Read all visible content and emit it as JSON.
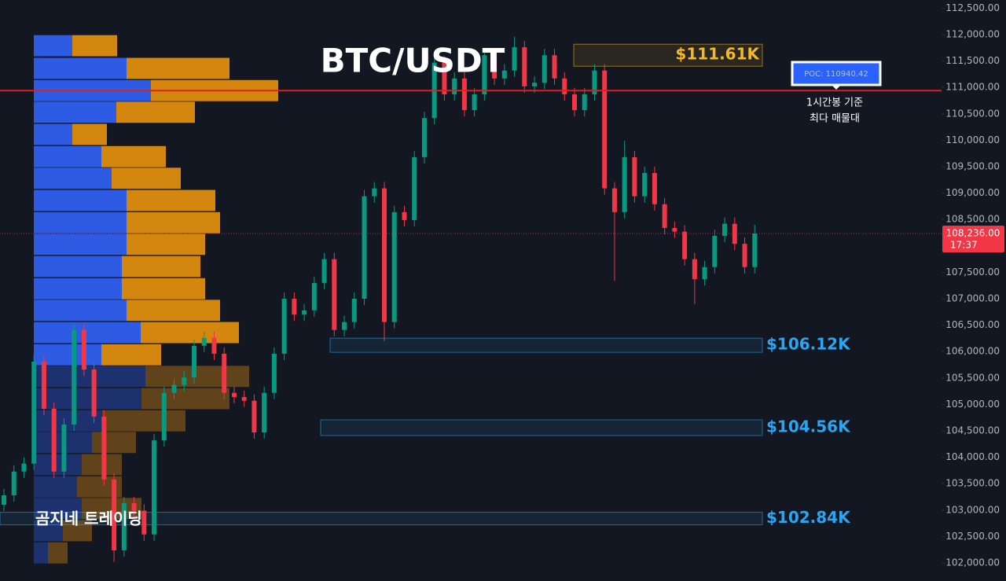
{
  "chart_data": {
    "type": "candlestick",
    "title": "BTC/USDT",
    "watermark": "곰지네 트레이딩",
    "up_color": "#089981",
    "down_color": "#f23645",
    "open": [
      103100,
      103280,
      103730,
      103880,
      105810,
      104920,
      103730,
      104620,
      106410,
      105660,
      104770,
      103580,
      102240,
      103130,
      102990,
      102540,
      104320,
      105220,
      105370,
      105510,
      106110,
      106260,
      105960,
      105220,
      105140,
      105070,
      104470,
      105220,
      105960,
      107000,
      106700,
      106780,
      107300,
      107750,
      106410,
      106560,
      107000,
      108940,
      109090,
      106560,
      108640,
      108490,
      109680,
      110420,
      111470,
      110870,
      111170,
      110570,
      110870,
      111610,
      111170,
      111320,
      111760,
      111020,
      111090,
      111610,
      111170,
      110870,
      110570,
      110870,
      111320,
      109090,
      108640,
      109680,
      108940,
      109380,
      108790,
      108340,
      108270,
      107750,
      107370,
      107600,
      108190,
      108420,
      108040,
      107600
    ],
    "high": [
      103400,
      103850,
      104000,
      105950,
      105930,
      105040,
      104740,
      106530,
      106530,
      105780,
      104890,
      103700,
      103250,
      103250,
      103110,
      104440,
      105340,
      105490,
      105630,
      106230,
      106380,
      106380,
      106080,
      105340,
      105260,
      105190,
      105340,
      106080,
      107120,
      107120,
      106900,
      107420,
      107870,
      107870,
      106680,
      107120,
      109060,
      109210,
      109210,
      108760,
      108760,
      109800,
      110540,
      111590,
      111590,
      111290,
      111290,
      110990,
      111730,
      111730,
      111440,
      111960,
      111880,
      111210,
      111730,
      111730,
      111290,
      110990,
      110990,
      111440,
      111440,
      109210,
      109990,
      109800,
      109500,
      109500,
      108910,
      108460,
      108390,
      107870,
      107720,
      108310,
      108540,
      108540,
      108160,
      108400
    ],
    "low": [
      102980,
      103160,
      103610,
      103760,
      104800,
      103610,
      103610,
      104500,
      105540,
      104650,
      103460,
      102020,
      102120,
      102870,
      102420,
      102420,
      104200,
      105100,
      105250,
      105390,
      105990,
      105840,
      105100,
      105020,
      104950,
      104350,
      104350,
      105100,
      105840,
      106580,
      106580,
      106660,
      107180,
      106290,
      106290,
      106440,
      106880,
      108820,
      106200,
      106440,
      108370,
      108370,
      109560,
      110300,
      110750,
      110750,
      110450,
      110450,
      110750,
      111050,
      111050,
      111200,
      110900,
      110900,
      110970,
      111050,
      110750,
      110450,
      110450,
      110750,
      108970,
      107340,
      108520,
      108820,
      108820,
      108670,
      108220,
      108150,
      107630,
      106900,
      107250,
      107480,
      108070,
      107920,
      107480,
      107480
    ],
    "close": [
      103280,
      103730,
      103880,
      105810,
      104920,
      103730,
      104620,
      106410,
      105660,
      104770,
      103580,
      102240,
      103130,
      102990,
      102540,
      104320,
      105220,
      105370,
      105510,
      106110,
      106260,
      105960,
      105220,
      105140,
      105070,
      104470,
      105220,
      105960,
      107000,
      106700,
      106780,
      107300,
      107750,
      106410,
      106560,
      107000,
      108940,
      109090,
      106560,
      108640,
      108490,
      109680,
      110420,
      111470,
      110870,
      111170,
      110570,
      110870,
      111610,
      111170,
      111320,
      111760,
      111020,
      111090,
      111610,
      111170,
      110870,
      110570,
      110870,
      111320,
      109090,
      108640,
      109680,
      108940,
      109380,
      108790,
      108340,
      108270,
      107750,
      107370,
      107600,
      108190,
      108420,
      108040,
      107600,
      108236
    ],
    "ylim": [
      101658,
      112655
    ],
    "yticks": [
      {
        "value": 102000,
        "label": "102,000.00"
      },
      {
        "value": 102500,
        "label": "102,500.00"
      },
      {
        "value": 103000,
        "label": "103,000.00"
      },
      {
        "value": 103500,
        "label": "103,500.00"
      },
      {
        "value": 104000,
        "label": "104,000.00"
      },
      {
        "value": 104500,
        "label": "104,500.00"
      },
      {
        "value": 105000,
        "label": "105,000.00"
      },
      {
        "value": 105500,
        "label": "105,500.00"
      },
      {
        "value": 106000,
        "label": "106,000.00"
      },
      {
        "value": 106500,
        "label": "106,500.00"
      },
      {
        "value": 107000,
        "label": "107,000.00"
      },
      {
        "value": 107500,
        "label": "107,500.00"
      },
      {
        "value": 108000,
        "label": "108,000.00"
      },
      {
        "value": 108500,
        "label": "108,500.00"
      },
      {
        "value": 109000,
        "label": "109,000.00"
      },
      {
        "value": 109500,
        "label": "109,500.00"
      },
      {
        "value": 110000,
        "label": "110,000.00"
      },
      {
        "value": 110500,
        "label": "110,500.00"
      },
      {
        "value": 111000,
        "label": "111,000.00"
      },
      {
        "value": 111500,
        "label": "111,500.00"
      },
      {
        "value": 112000,
        "label": "112,000.00"
      },
      {
        "value": 112500,
        "label": "112,500.00"
      }
    ],
    "last_price": {
      "value": 108236,
      "label": "108,236.00",
      "countdown": "17:37",
      "color": "#f23645"
    },
    "poc": {
      "value": 110940.42,
      "label": "POC: 110940.42",
      "note": [
        "1시간봉 기준",
        "최다 매물대"
      ],
      "color": "#e01e1e"
    },
    "zones": [
      {
        "level": 111610,
        "label": "$111.61K",
        "color": "#f5b820"
      },
      {
        "level": 106120,
        "label": "$106.12K",
        "color": "#2aa6f0"
      },
      {
        "level": 104560,
        "label": "$104.56K",
        "color": "#2aa6f0"
      },
      {
        "level": 102840,
        "label": "$102.84K",
        "color": "#2aa6f0"
      }
    ],
    "volume_profile": {
      "prices": [
        111790,
        111360,
        110940,
        110530,
        110110,
        109690,
        109280,
        108860,
        108440,
        108030,
        107610,
        107190,
        106780,
        106360,
        105940,
        105530,
        105110,
        104690,
        104280,
        103860,
        103440,
        103030,
        102610,
        102190
      ],
      "buy": [
        49,
        118,
        149,
        105,
        49,
        86,
        99,
        118,
        118,
        118,
        112,
        112,
        118,
        136,
        86,
        142,
        137,
        87,
        74,
        61,
        55,
        61,
        37,
        18
      ],
      "sell": [
        57,
        131,
        162,
        100,
        44,
        82,
        88,
        113,
        119,
        100,
        100,
        106,
        119,
        125,
        76,
        132,
        112,
        106,
        56,
        51,
        57,
        76,
        37,
        25
      ],
      "value_area_low": 105730,
      "buy_color": "#2d5be3",
      "sell_color": "#d4870e"
    }
  }
}
